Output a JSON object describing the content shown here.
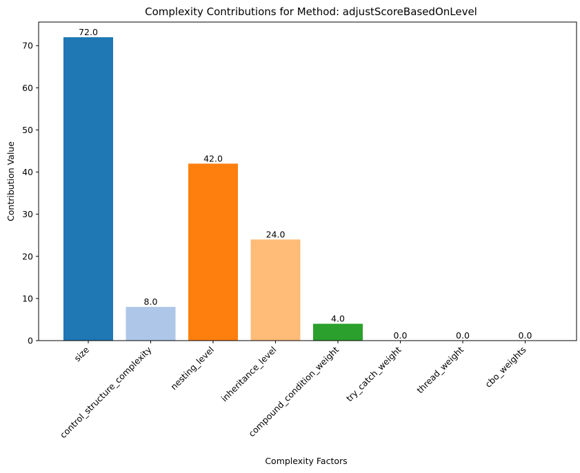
{
  "chart_data": {
    "type": "bar",
    "title": "Complexity Contributions for Method: adjustScoreBasedOnLevel",
    "xlabel": "Complexity Factors",
    "ylabel": "Contribution Value",
    "categories": [
      "size",
      "control_structure_complexity",
      "nesting_level",
      "inheritance_level",
      "compound_condition_weight",
      "try_catch_weight",
      "thread_weight",
      "cbo_weights"
    ],
    "values": [
      72.0,
      8.0,
      42.0,
      24.0,
      4.0,
      0.0,
      0.0,
      0.0
    ],
    "value_labels": [
      "72.0",
      "8.0",
      "42.0",
      "24.0",
      "4.0",
      "0.0",
      "0.0",
      "0.0"
    ],
    "colors": [
      "#1f77b4",
      "#aec7e8",
      "#ff7f0e",
      "#ffbb78",
      "#2ca02c",
      "#98df8a",
      "#d62728",
      "#ff9896"
    ],
    "ylim": [
      0,
      75.6
    ],
    "yticks": [
      0,
      10,
      20,
      30,
      40,
      50,
      60,
      70
    ],
    "grid": false,
    "legend": "none"
  }
}
